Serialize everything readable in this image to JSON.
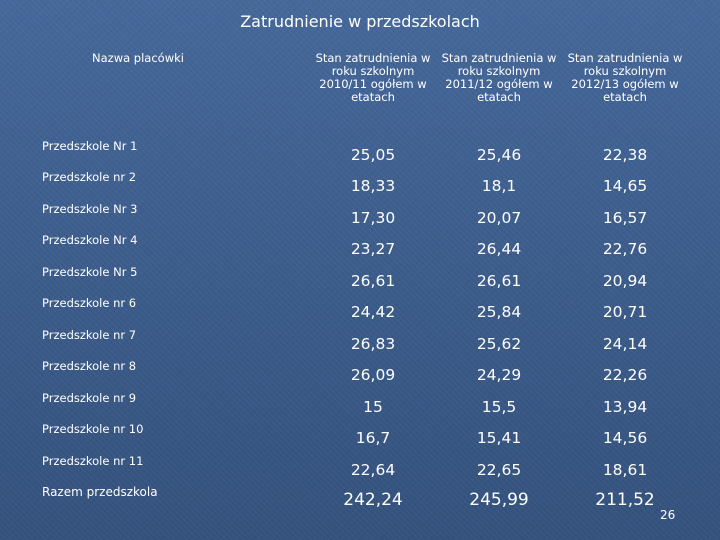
{
  "title": "Zatrudnienie w przedszkolach",
  "table": {
    "headers": [
      "Nazwa placówki",
      "Stan zatrudnienia w roku szkolnym 2010/11 ogółem w etatach",
      "Stan zatrudnienia w roku szkolnym 2011/12 ogółem w etatach",
      "Stan zatrudnienia w roku szkolnym 2012/13 ogółem w etatach"
    ],
    "rows": [
      {
        "name": "Przedszkole Nr 1",
        "values": [
          "25,05",
          "25,46",
          "22,38"
        ]
      },
      {
        "name": "Przedszkole nr 2",
        "values": [
          "18,33",
          "18,1",
          "14,65"
        ]
      },
      {
        "name": "Przedszkole Nr 3",
        "values": [
          "17,30",
          "20,07",
          "16,57"
        ]
      },
      {
        "name": "Przedszkole Nr 4",
        "values": [
          "23,27",
          "26,44",
          "22,76"
        ]
      },
      {
        "name": "Przedszkole Nr 5",
        "values": [
          "26,61",
          "26,61",
          "20,94"
        ]
      },
      {
        "name": "Przedszkole nr 6",
        "values": [
          "24,42",
          "25,84",
          "20,71"
        ]
      },
      {
        "name": "Przedszkole nr 7",
        "values": [
          "26,83",
          "25,62",
          "24,14"
        ]
      },
      {
        "name": "Przedszkole nr 8",
        "values": [
          "26,09",
          "24,29",
          "22,26"
        ]
      },
      {
        "name": "Przedszkole nr 9",
        "values": [
          "15",
          "15,5",
          "13,94"
        ]
      },
      {
        "name": "Przedszkole nr 10",
        "values": [
          "16,7",
          "15,41",
          "14,56"
        ]
      },
      {
        "name": "Przedszkole nr 11",
        "values": [
          "22,64",
          "22,65",
          "18,61"
        ]
      }
    ],
    "total": {
      "name": "Razem przedszkola",
      "values": [
        "242,24",
        "245,99",
        "211,52"
      ]
    }
  },
  "page_number": "26"
}
